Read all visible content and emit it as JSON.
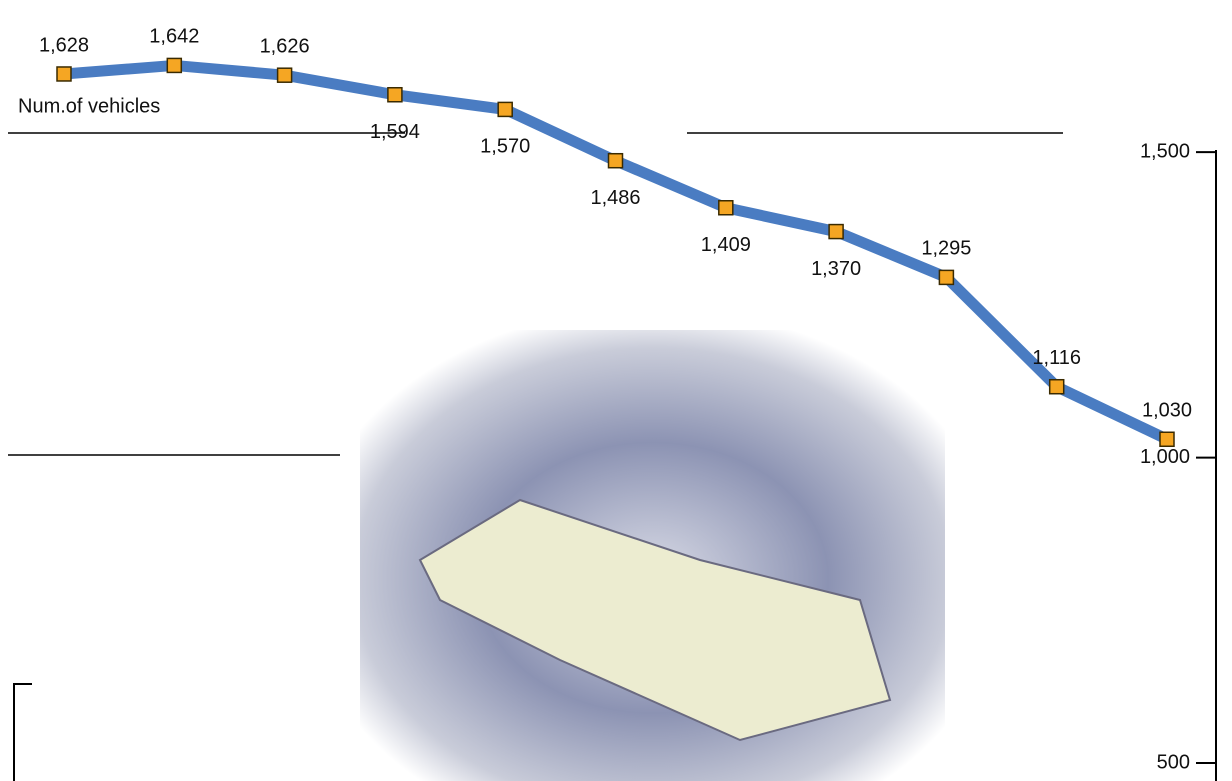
{
  "chart_data": {
    "type": "line",
    "y_label": "Num.of vehicles",
    "series": [
      {
        "color": "#4a7cc2",
        "values": [
          1628,
          1642,
          1626,
          1594,
          1570,
          1486,
          1409,
          1370,
          1295,
          1116,
          1030
        ],
        "value_labels": [
          "1,628",
          "1,642",
          "1,626",
          "1,594",
          "1,570",
          "1,486",
          "1,409",
          "1,370",
          "1,295",
          "1,116",
          "1,030"
        ]
      }
    ],
    "categories": [
      null,
      null,
      null,
      null,
      null,
      null,
      null,
      null,
      null,
      null,
      null
    ],
    "marker_color": "#f5a623",
    "ylim": [
      500,
      1700
    ],
    "yticks": [
      {
        "value": 500,
        "label": "500"
      },
      {
        "value": 1000,
        "label": "1,000"
      },
      {
        "value": 1500,
        "label": "1,500"
      }
    ]
  }
}
